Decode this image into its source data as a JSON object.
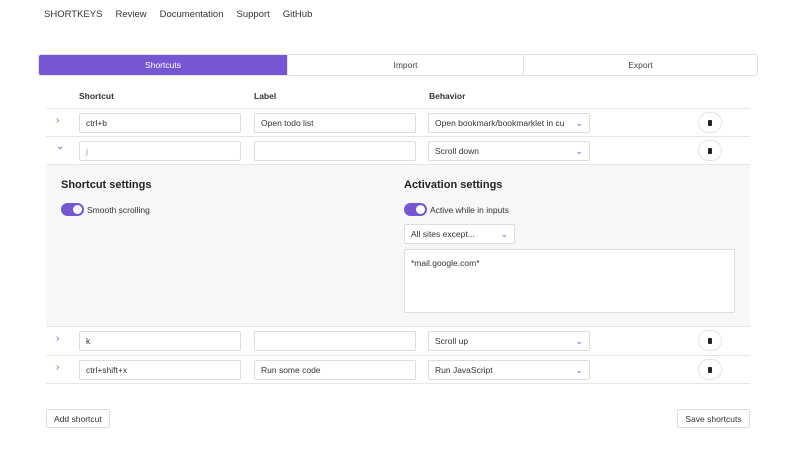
{
  "nav": [
    "SHORTKEYS",
    "Review",
    "Documentation",
    "Support",
    "GitHub"
  ],
  "tabs": [
    "Shortcuts",
    "Import",
    "Export"
  ],
  "columns": {
    "shortcut": "Shortcut",
    "label": "Label",
    "behavior": "Behavior"
  },
  "rows": [
    {
      "shortcut": "ctrl+b",
      "label": "Open todo list",
      "behavior": "Open bookmark/bookmarklet in cu",
      "expanded": false
    },
    {
      "shortcut": "j",
      "label": "",
      "behavior": "Scroll down",
      "expanded": true
    },
    {
      "shortcut": "k",
      "label": "",
      "behavior": "Scroll up",
      "expanded": false
    },
    {
      "shortcut": "ctrl+shift+x",
      "label": "Run some code",
      "behavior": "Run JavaScript",
      "expanded": false
    }
  ],
  "panel": {
    "shortcut_settings": "Shortcut settings",
    "smooth_scrolling": "Smooth scrolling",
    "smooth_on": true,
    "activation_settings": "Activation settings",
    "active_inputs": "Active while in inputs",
    "active_on": true,
    "sites": "All sites except...",
    "sites_list": "*mail.google.com*"
  },
  "buttons": {
    "add": "Add shortcut",
    "save": "Save shortcuts"
  },
  "colors": {
    "accent": "#7756d4"
  }
}
